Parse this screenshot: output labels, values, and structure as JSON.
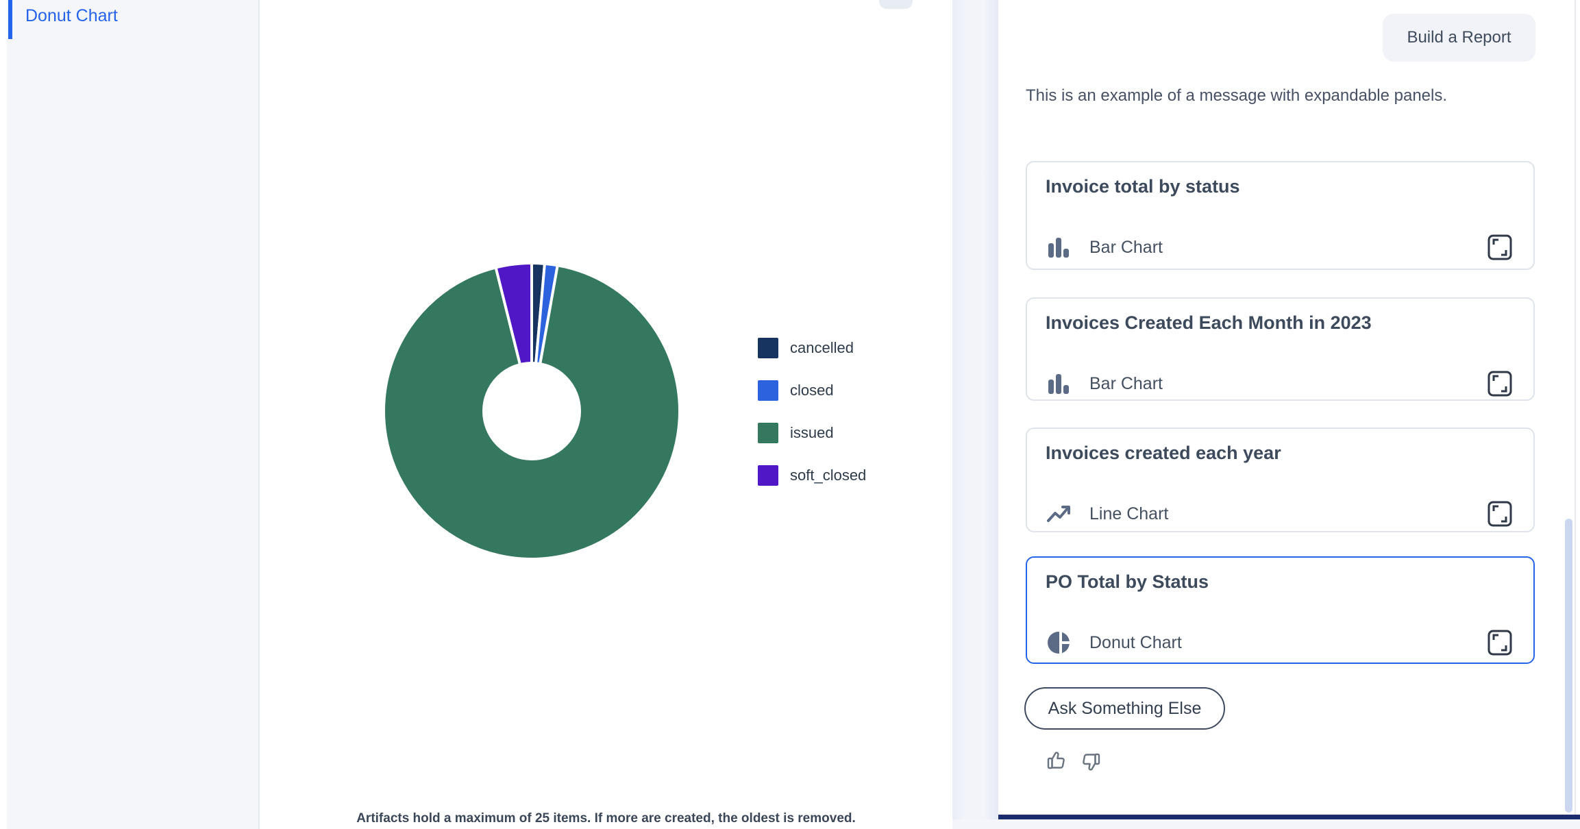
{
  "colors": {
    "accent_blue": "#2563EB",
    "bottom_bar_navy": "#1B2D6E",
    "slate_text": "#3D4A5C",
    "icon_slate": "#5B6B85"
  },
  "sidebar": {
    "items": [
      {
        "label": "Donut Chart",
        "active": true
      }
    ]
  },
  "artifact_panel": {
    "footer_note": "Artifacts hold a maximum of 25 items. If more are created, the oldest is removed."
  },
  "chart_data": {
    "type": "pie",
    "subtype": "donut",
    "title": "PO Total by Status",
    "labels": [
      "cancelled",
      "closed",
      "issued",
      "soft_closed"
    ],
    "values": [
      1.4,
      1.4,
      93.3,
      3.9
    ],
    "values_note": "percent of total, estimated from arc angles",
    "colors": [
      "#16345F",
      "#2C62DE",
      "#33785F",
      "#4F17C6"
    ],
    "hole": 0.32,
    "legend_position": "right",
    "slice_gap_color": "#FFFFFF"
  },
  "chat_panel": {
    "build_report_button": "Build a Report",
    "message": "This is an example of a message with expandable panels.",
    "cards": [
      {
        "title": "Invoice total by status",
        "chart_type": "Bar Chart",
        "selected": false
      },
      {
        "title": "Invoices Created Each Month in 2023",
        "chart_type": "Bar Chart",
        "selected": false
      },
      {
        "title": "Invoices created each year",
        "chart_type": "Line Chart",
        "selected": false
      },
      {
        "title": "PO Total by Status",
        "chart_type": "Donut Chart",
        "selected": true
      }
    ],
    "ask_button": "Ask Something Else"
  }
}
